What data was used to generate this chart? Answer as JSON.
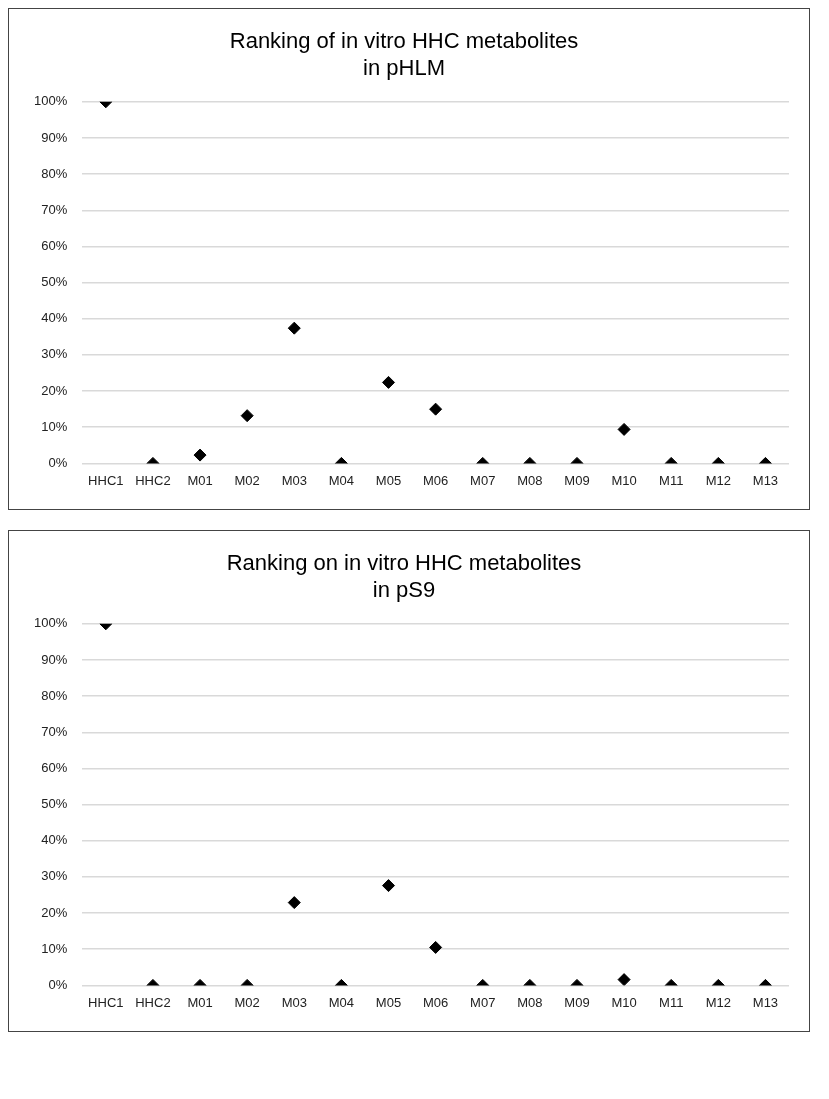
{
  "chart_data": [
    {
      "type": "scatter",
      "title": "Ranking of in vitro HHC metabolites\nin pHLM",
      "categories": [
        "HHC1",
        "HHC2",
        "M01",
        "M02",
        "M03",
        "M04",
        "M05",
        "M06",
        "M07",
        "M08",
        "M09",
        "M10",
        "M11",
        "M12",
        "M13"
      ],
      "series": [
        {
          "color": "#000000",
          "values": [
            100,
            0,
            2.3,
            13.2,
            37.4,
            0,
            22.4,
            15,
            0,
            0,
            0,
            9.4,
            0,
            0,
            0
          ]
        }
      ],
      "ylim": [
        0,
        100
      ],
      "yticks": [
        {
          "value": 0,
          "label": "0%"
        },
        {
          "value": 10,
          "label": "10%"
        },
        {
          "value": 20,
          "label": "20%"
        },
        {
          "value": 30,
          "label": "30%"
        },
        {
          "value": 40,
          "label": "40%"
        },
        {
          "value": 50,
          "label": "50%"
        },
        {
          "value": 60,
          "label": "60%"
        },
        {
          "value": 70,
          "label": "70%"
        },
        {
          "value": 80,
          "label": "80%"
        },
        {
          "value": 90,
          "label": "90%"
        },
        {
          "value": 100,
          "label": "100%"
        }
      ],
      "grid": "y",
      "marker": "diamond",
      "legend": false
    },
    {
      "type": "scatter",
      "title": "Ranking on in vitro HHC metabolites\nin pS9",
      "categories": [
        "HHC1",
        "HHC2",
        "M01",
        "M02",
        "M03",
        "M04",
        "M05",
        "M06",
        "M07",
        "M08",
        "M09",
        "M10",
        "M11",
        "M12",
        "M13"
      ],
      "series": [
        {
          "color": "#000000",
          "values": [
            100,
            0,
            0,
            0,
            22.9,
            0,
            27.6,
            10.5,
            0,
            0,
            0,
            1.6,
            0,
            0,
            0
          ]
        }
      ],
      "ylim": [
        0,
        100
      ],
      "yticks": [
        {
          "value": 0,
          "label": "0%"
        },
        {
          "value": 10,
          "label": "10%"
        },
        {
          "value": 20,
          "label": "20%"
        },
        {
          "value": 30,
          "label": "30%"
        },
        {
          "value": 40,
          "label": "40%"
        },
        {
          "value": 50,
          "label": "50%"
        },
        {
          "value": 60,
          "label": "60%"
        },
        {
          "value": 70,
          "label": "70%"
        },
        {
          "value": 80,
          "label": "80%"
        },
        {
          "value": 90,
          "label": "90%"
        },
        {
          "value": 100,
          "label": "100%"
        }
      ],
      "grid": "y",
      "marker": "diamond",
      "legend": false
    }
  ]
}
